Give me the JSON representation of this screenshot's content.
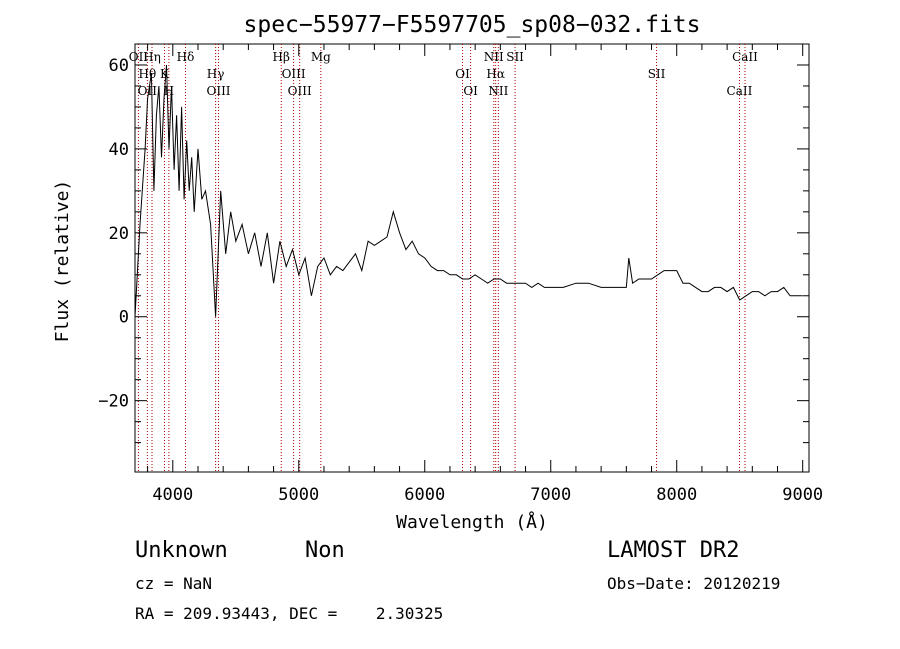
{
  "chart_data": {
    "type": "line",
    "title": "spec−55977−F5597705_sp08−032.fits",
    "xlabel": "Wavelength (Å)",
    "ylabel": "Flux (relative)",
    "xlim": [
      3700,
      9050
    ],
    "ylim": [
      -37,
      65
    ],
    "xticks": [
      4000,
      5000,
      6000,
      7000,
      8000,
      9000
    ],
    "yticks": [
      -20,
      0,
      20,
      40,
      60
    ],
    "ytick_labels": [
      "−20",
      "0",
      "20",
      "40",
      "60"
    ],
    "grid": false,
    "series": [
      {
        "x": [
          3700,
          3740,
          3780,
          3800,
          3830,
          3850,
          3870,
          3890,
          3910,
          3930,
          3950,
          3970,
          3990,
          4010,
          4030,
          4050,
          4070,
          4090,
          4110,
          4130,
          4150,
          4170,
          4200,
          4230,
          4260,
          4300,
          4340,
          4380,
          4420,
          4460,
          4500,
          4550,
          4600,
          4650,
          4700,
          4750,
          4800,
          4850,
          4900,
          4950,
          5000,
          5050,
          5100,
          5150,
          5200,
          5250,
          5300,
          5350,
          5400,
          5450,
          5500,
          5550,
          5600,
          5650,
          5700,
          5750,
          5800,
          5850,
          5900,
          5950,
          6000,
          6050,
          6100,
          6150,
          6200,
          6250,
          6300,
          6350,
          6400,
          6450,
          6500,
          6550,
          6600,
          6650,
          6700,
          6750,
          6800,
          6850,
          6900,
          6950,
          7000,
          7100,
          7200,
          7300,
          7400,
          7500,
          7600,
          7620,
          7650,
          7700,
          7800,
          7850,
          7900,
          7950,
          8000,
          8050,
          8100,
          8150,
          8200,
          8250,
          8300,
          8350,
          8400,
          8450,
          8500,
          8550,
          8600,
          8650,
          8700,
          8750,
          8800,
          8850,
          8900,
          8950,
          9000
        ],
        "y": [
          0,
          22,
          40,
          52,
          58,
          30,
          48,
          55,
          38,
          52,
          60,
          40,
          55,
          35,
          48,
          30,
          50,
          28,
          42,
          30,
          38,
          25,
          40,
          28,
          30,
          22,
          0,
          30,
          15,
          25,
          18,
          22,
          15,
          20,
          12,
          20,
          8,
          18,
          12,
          16,
          10,
          14,
          5,
          12,
          14,
          10,
          12,
          11,
          13,
          15,
          11,
          18,
          17,
          18,
          19,
          25,
          20,
          16,
          18,
          15,
          14,
          12,
          11,
          11,
          10,
          10,
          9,
          9,
          10,
          9,
          8,
          9,
          9,
          8,
          8,
          8,
          8,
          7,
          8,
          7,
          7,
          7,
          8,
          8,
          7,
          7,
          7,
          14,
          8,
          9,
          9,
          10,
          11,
          11,
          11,
          8,
          8,
          7,
          6,
          6,
          7,
          7,
          6,
          7,
          4,
          5,
          6,
          6,
          5,
          6,
          6,
          7,
          5,
          5,
          5
        ]
      }
    ],
    "lines": [
      {
        "x": 3727,
        "labels": [
          "OII"
        ]
      },
      {
        "x": 3798,
        "labels": [
          "Hθ",
          "OII"
        ]
      },
      {
        "x": 3835,
        "labels": [
          "Hη"
        ]
      },
      {
        "x": 3934,
        "labels": [
          "K"
        ]
      },
      {
        "x": 3969,
        "labels": [
          "H"
        ]
      },
      {
        "x": 4101,
        "labels": [
          "Hδ"
        ]
      },
      {
        "x": 4340,
        "labels": [
          "Hγ"
        ]
      },
      {
        "x": 4363,
        "labels": [
          "OIII"
        ]
      },
      {
        "x": 4861,
        "labels": [
          "Hβ"
        ]
      },
      {
        "x": 4959,
        "labels": [
          "OIII"
        ]
      },
      {
        "x": 5007,
        "labels": [
          "OIII"
        ]
      },
      {
        "x": 5175,
        "labels": [
          "Mg"
        ]
      },
      {
        "x": 6300,
        "labels": [
          "OI"
        ]
      },
      {
        "x": 6364,
        "labels": [
          "OI"
        ]
      },
      {
        "x": 6548,
        "labels": [
          "NII"
        ]
      },
      {
        "x": 6563,
        "labels": [
          "Hα"
        ]
      },
      {
        "x": 6584,
        "labels": [
          "NII"
        ]
      },
      {
        "x": 6717,
        "labels": [
          "SII"
        ]
      },
      {
        "x": 7840,
        "labels": [
          "SII"
        ]
      },
      {
        "x": 8498,
        "labels": [
          "CaII"
        ]
      },
      {
        "x": 8542,
        "labels": [
          "CaII"
        ]
      }
    ]
  },
  "info": {
    "class_label": "Unknown",
    "subclass_label": "Non",
    "survey_label": "LAMOST DR2",
    "cz_label": "cz = NaN",
    "obs_date_label": "Obs−Date: 20120219",
    "coords_label": "RA = 209.93443, DEC =    2.30325"
  }
}
